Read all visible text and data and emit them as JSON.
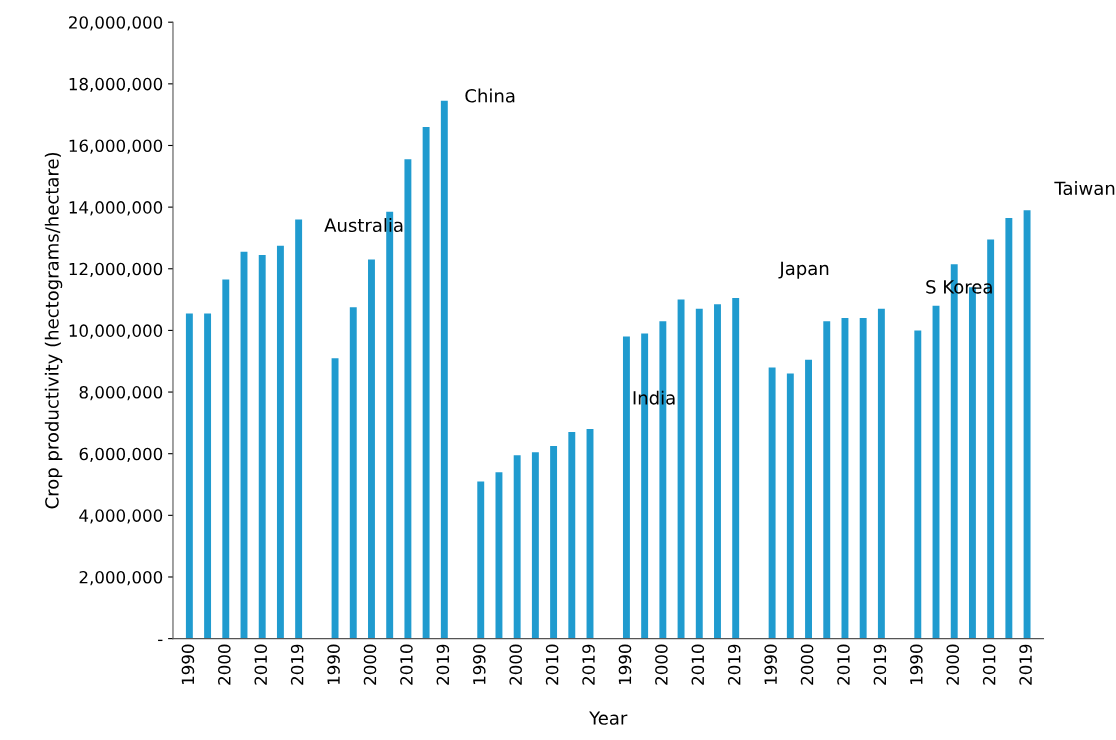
{
  "chart_data": {
    "type": "bar",
    "xlabel": "Year",
    "ylabel": "Crop productivity (hectograms/hectare)",
    "categories": [
      "1990",
      null,
      "2000",
      null,
      "2010",
      null,
      "2019",
      null,
      "1990",
      null,
      "2000",
      null,
      "2010",
      null,
      "2019",
      null,
      "1990",
      null,
      "2000",
      null,
      "2010",
      null,
      "2019",
      null,
      "1990",
      null,
      "2000",
      null,
      "2010",
      null,
      "2019",
      null,
      "1990",
      null,
      "2000",
      null,
      "2010",
      null,
      "2019",
      null,
      "1990",
      null,
      "2000",
      null,
      "2010",
      null,
      "2019"
    ],
    "values": [
      10550000,
      10550000,
      11650000,
      12550000,
      12450000,
      12750000,
      13600000,
      null,
      9100000,
      10750000,
      12300000,
      13850000,
      15550000,
      16600000,
      17450000,
      null,
      5100000,
      5400000,
      5950000,
      6050000,
      6250000,
      6700000,
      6800000,
      null,
      9800000,
      9900000,
      10300000,
      11000000,
      10700000,
      10850000,
      11050000,
      null,
      8800000,
      8600000,
      9050000,
      10300000,
      10400000,
      10400000,
      10700000,
      null,
      10000000,
      10800000,
      12150000,
      11400000,
      12950000,
      13650000,
      13900000
    ],
    "color": "#209bcf",
    "ylim": [
      0,
      20000000
    ],
    "yticks": [
      {
        "value": 0,
        "label": "-"
      },
      {
        "value": 2000000,
        "label": "2,000,000"
      },
      {
        "value": 4000000,
        "label": "4,000,000"
      },
      {
        "value": 6000000,
        "label": "6,000,000"
      },
      {
        "value": 8000000,
        "label": "8,000,000"
      },
      {
        "value": 10000000,
        "label": "10,000,000"
      },
      {
        "value": 12000000,
        "label": "12,000,000"
      },
      {
        "value": 14000000,
        "label": "14,000,000"
      },
      {
        "value": 16000000,
        "label": "16,000,000"
      },
      {
        "value": 18000000,
        "label": "18,000,000"
      },
      {
        "value": 20000000,
        "label": "20,000,000"
      }
    ],
    "annotations": [
      "Australia",
      "China",
      "India",
      "Japan",
      "S Korea",
      "Taiwan"
    ],
    "grid": false,
    "legend": false
  }
}
